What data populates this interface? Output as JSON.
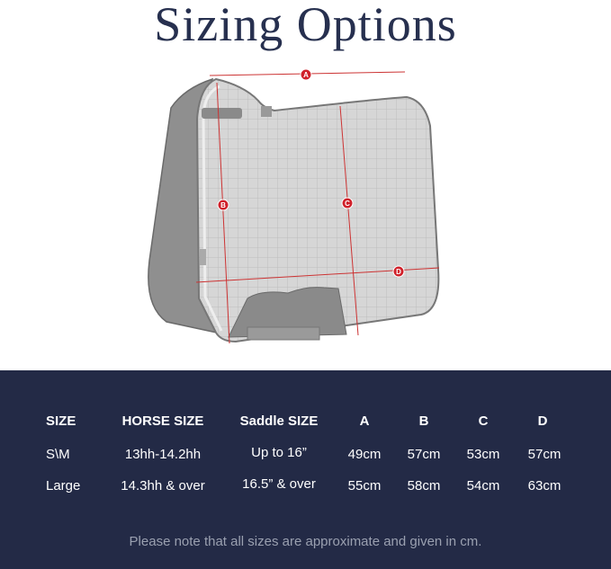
{
  "title": "Sizing Options",
  "diagram": {
    "measure_labels": [
      "A",
      "B",
      "C",
      "D"
    ],
    "accent_color": "#d0202a"
  },
  "table": {
    "headers": [
      "SIZE",
      "HORSE SIZE",
      "Saddle SIZE",
      "A",
      "B",
      "C",
      "D"
    ],
    "rows": [
      [
        "S\\M",
        "13hh-14.2hh",
        "Up to 16”",
        "49cm",
        "57cm",
        "53cm",
        "57cm"
      ],
      [
        "Large",
        "14.3hh & over",
        "16.5” & over",
        "55cm",
        "58cm",
        "54cm",
        "63cm"
      ]
    ]
  },
  "note": "Please note that all sizes are approximate and given in cm.",
  "colors": {
    "band": "#232a46",
    "title": "#27304f"
  }
}
